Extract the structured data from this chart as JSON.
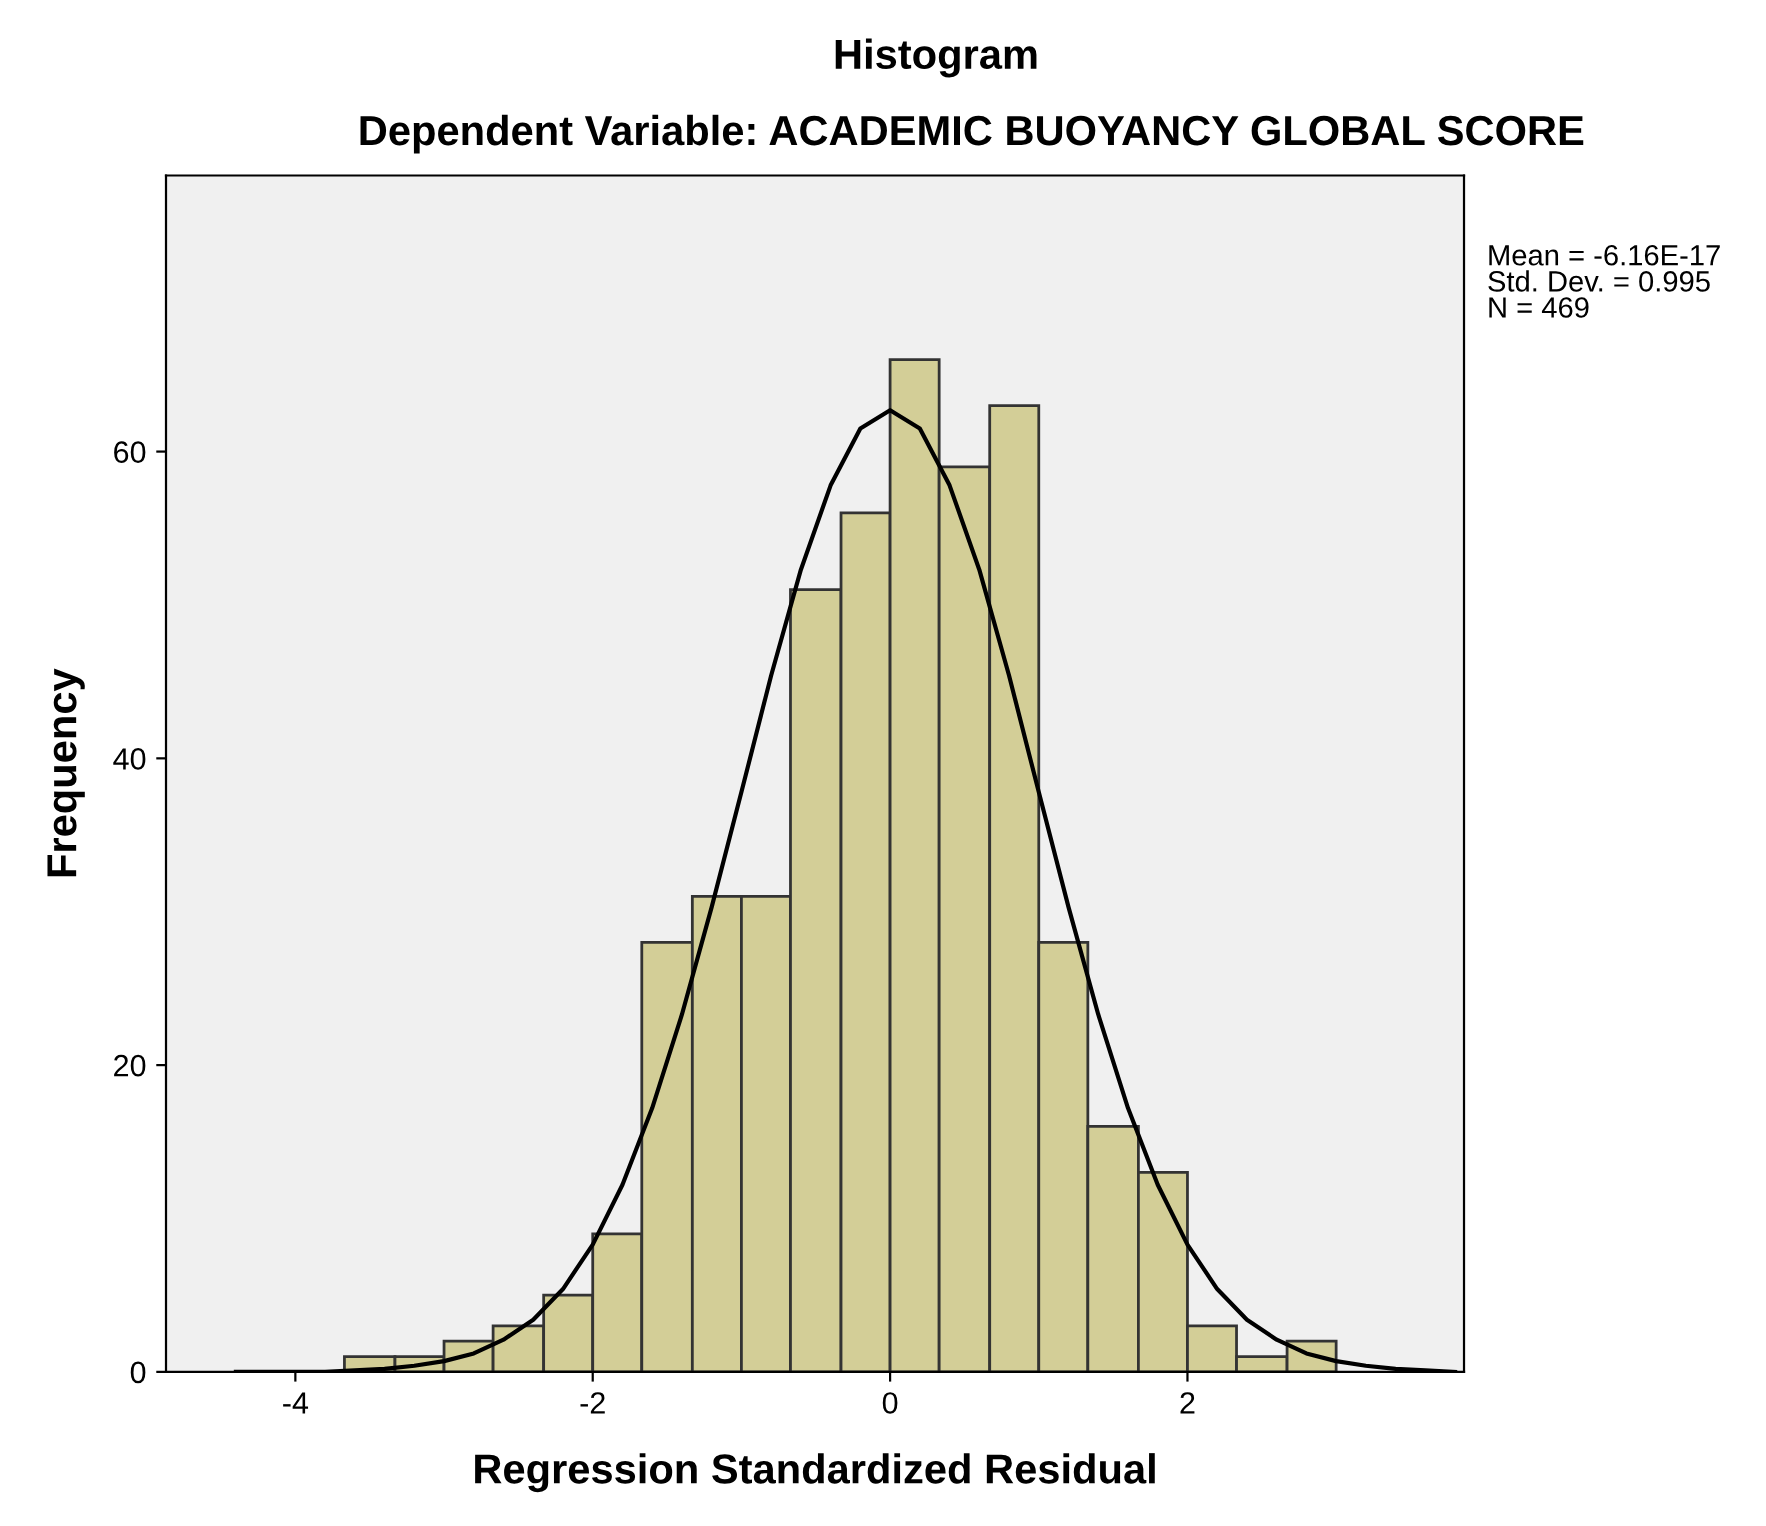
{
  "chart_data": {
    "type": "histogram",
    "title": "Histogram",
    "subtitle": "Dependent Variable: ACADEMIC BUOYANCY GLOBAL SCORE",
    "xlabel": "Regression Standardized Residual",
    "ylabel": "Frequency",
    "bins": [
      -3.67,
      -3.33,
      -3,
      -2.67,
      -2.33,
      -2,
      -1.67,
      -1.33,
      -1,
      -0.67,
      -0.33,
      0,
      0.33,
      0.67,
      1,
      1.33,
      1.67,
      2,
      2.33,
      2.67,
      3
    ],
    "values": [
      1,
      1,
      2,
      3,
      5,
      9,
      28,
      31,
      31,
      51,
      56,
      66,
      59,
      63,
      28,
      16,
      13,
      3,
      1,
      2
    ],
    "color": "#d3ce97",
    "series": [
      {
        "type": "line",
        "color": "#000000",
        "x": [
          -4.4,
          -4.2,
          -4.0,
          -3.8,
          -3.6,
          -3.4,
          -3.2,
          -3.0,
          -2.8,
          -2.6,
          -2.4,
          -2.2,
          -2.0,
          -1.8,
          -1.6,
          -1.4,
          -1.2,
          -1.0,
          -0.8,
          -0.6,
          -0.4,
          -0.2,
          0,
          0.2,
          0.4,
          0.6,
          0.8,
          1.0,
          1.2,
          1.4,
          1.6,
          1.8,
          2.0,
          2.2,
          2.4,
          2.6,
          2.8,
          3.0,
          3.2,
          3.4,
          3.6,
          3.8
        ],
        "values": [
          0,
          0,
          0,
          0,
          0.1,
          0.2,
          0.4,
          0.7,
          1.2,
          2.1,
          3.4,
          5.4,
          8.3,
          12.2,
          17.2,
          23.3,
          30.3,
          37.8,
          45.4,
          52.3,
          57.8,
          61.5,
          62.7,
          61.5,
          57.8,
          52.3,
          45.4,
          37.8,
          30.3,
          23.3,
          17.2,
          12.2,
          8.3,
          5.4,
          3.4,
          2.1,
          1.2,
          0.7,
          0.4,
          0.2,
          0.1,
          0
        ]
      }
    ],
    "xlim": [
      -4.87,
      3.86
    ],
    "ylim": [
      0,
      78
    ],
    "xticks": [
      -4,
      -2,
      0,
      2
    ],
    "yticks": [
      0,
      20,
      40,
      60
    ],
    "grid": false,
    "legend": false,
    "annotations": [
      "Mean = -6.16E-17\nStd. Dev. = 0.995\nN = 469"
    ]
  }
}
